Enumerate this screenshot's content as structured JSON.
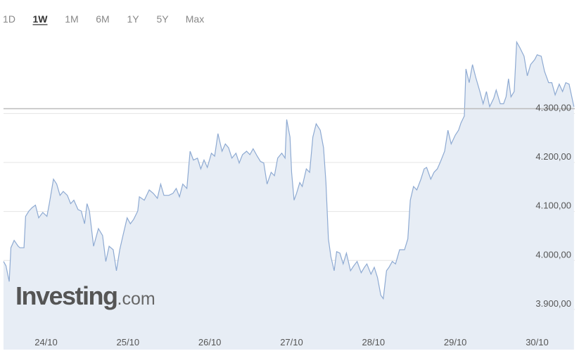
{
  "range_buttons": [
    "1D",
    "1W",
    "1M",
    "6M",
    "1Y",
    "5Y",
    "Max"
  ],
  "active_range": 1,
  "watermark": {
    "brand": "Investing",
    "suffix": ".com"
  },
  "chart_data": {
    "type": "area",
    "line_color": "#8eaad2",
    "fill_color": "#e7edf5",
    "reference_line": 4310,
    "reference_color": "#bcbcbc",
    "grid": true,
    "xlim": [
      -0.52,
      6.46
    ],
    "ylim": [
      3818,
      4460
    ],
    "xticks": [
      {
        "value": 0,
        "label": "24/10"
      },
      {
        "value": 1,
        "label": "25/10"
      },
      {
        "value": 2,
        "label": "26/10"
      },
      {
        "value": 3,
        "label": "27/10"
      },
      {
        "value": 4,
        "label": "28/10"
      },
      {
        "value": 5,
        "label": "29/10"
      },
      {
        "value": 6,
        "label": "30/10"
      }
    ],
    "yticks": [
      {
        "value": 3900,
        "label": "3.900,00"
      },
      {
        "value": 4000,
        "label": "4.000,00"
      },
      {
        "value": 4100,
        "label": "4.100,00"
      },
      {
        "value": 4200,
        "label": "4.200,00"
      },
      {
        "value": 4300,
        "label": "4.300,00"
      }
    ],
    "x": [
      -0.52,
      -0.49,
      -0.45,
      -0.43,
      -0.39,
      -0.34,
      -0.32,
      -0.27,
      -0.25,
      -0.21,
      -0.17,
      -0.13,
      -0.09,
      -0.04,
      0.01,
      0.04,
      0.09,
      0.13,
      0.17,
      0.21,
      0.26,
      0.3,
      0.34,
      0.39,
      0.43,
      0.47,
      0.5,
      0.53,
      0.58,
      0.64,
      0.69,
      0.73,
      0.77,
      0.82,
      0.86,
      0.9,
      0.94,
      0.99,
      1.03,
      1.07,
      1.12,
      1.14,
      1.2,
      1.26,
      1.31,
      1.36,
      1.4,
      1.44,
      1.5,
      1.55,
      1.59,
      1.63,
      1.67,
      1.72,
      1.76,
      1.8,
      1.85,
      1.89,
      1.93,
      1.97,
      2.02,
      2.06,
      2.1,
      2.15,
      2.19,
      2.23,
      2.27,
      2.32,
      2.36,
      2.4,
      2.45,
      2.49,
      2.53,
      2.58,
      2.62,
      2.66,
      2.7,
      2.75,
      2.79,
      2.83,
      2.88,
      2.92,
      2.94,
      2.98,
      3.0,
      3.03,
      3.06,
      3.1,
      3.13,
      3.18,
      3.22,
      3.26,
      3.3,
      3.35,
      3.39,
      3.42,
      3.45,
      3.48,
      3.52,
      3.55,
      3.59,
      3.63,
      3.67,
      3.72,
      3.76,
      3.8,
      3.85,
      3.89,
      3.92,
      3.97,
      4.01,
      4.05,
      4.09,
      4.12,
      4.16,
      4.19,
      4.23,
      4.27,
      4.32,
      4.38,
      4.42,
      4.45,
      4.49,
      4.53,
      4.58,
      4.62,
      4.65,
      4.7,
      4.74,
      4.78,
      4.82,
      4.87,
      4.91,
      4.95,
      5.0,
      5.04,
      5.07,
      5.11,
      5.13,
      5.17,
      5.21,
      5.25,
      5.3,
      5.34,
      5.38,
      5.42,
      5.47,
      5.5,
      5.55,
      5.59,
      5.62,
      5.65,
      5.68,
      5.72,
      5.75,
      5.79,
      5.84,
      5.88,
      5.92,
      5.97,
      6.0,
      6.05,
      6.09,
      6.14,
      6.18,
      6.22,
      6.27,
      6.31,
      6.35,
      6.39,
      6.45
    ],
    "values": [
      3998,
      3989,
      3957,
      4026,
      4041,
      4029,
      4026,
      4026,
      4090,
      4101,
      4108,
      4113,
      4087,
      4098,
      4090,
      4116,
      4166,
      4156,
      4133,
      4141,
      4133,
      4116,
      4123,
      4104,
      4101,
      4075,
      4116,
      4101,
      4029,
      4065,
      4051,
      3998,
      4029,
      4022,
      3979,
      4022,
      4051,
      4087,
      4075,
      4084,
      4101,
      4130,
      4123,
      4144,
      4137,
      4127,
      4156,
      4133,
      4133,
      4137,
      4147,
      4130,
      4156,
      4147,
      4223,
      4205,
      4209,
      4187,
      4205,
      4190,
      4219,
      4213,
      4259,
      4223,
      4238,
      4230,
      4209,
      4219,
      4199,
      4216,
      4223,
      4216,
      4228,
      4213,
      4202,
      4199,
      4156,
      4180,
      4173,
      4209,
      4219,
      4209,
      4288,
      4252,
      4180,
      4123,
      4137,
      4159,
      4151,
      4187,
      4180,
      4252,
      4279,
      4266,
      4230,
      4159,
      4044,
      4008,
      3979,
      4018,
      4015,
      3993,
      4015,
      3979,
      3989,
      3998,
      3975,
      3986,
      3993,
      3972,
      3986,
      3965,
      3929,
      3922,
      3979,
      3986,
      3998,
      3993,
      4022,
      4022,
      4044,
      4123,
      4151,
      4144,
      4166,
      4187,
      4190,
      4166,
      4180,
      4187,
      4202,
      4223,
      4266,
      4238,
      4256,
      4266,
      4281,
      4295,
      4391,
      4363,
      4400,
      4374,
      4345,
      4320,
      4345,
      4314,
      4331,
      4348,
      4320,
      4320,
      4334,
      4371,
      4334,
      4345,
      4446,
      4434,
      4417,
      4377,
      4400,
      4410,
      4420,
      4417,
      4386,
      4363,
      4363,
      4338,
      4360,
      4345,
      4363,
      4360,
      4314
    ]
  }
}
